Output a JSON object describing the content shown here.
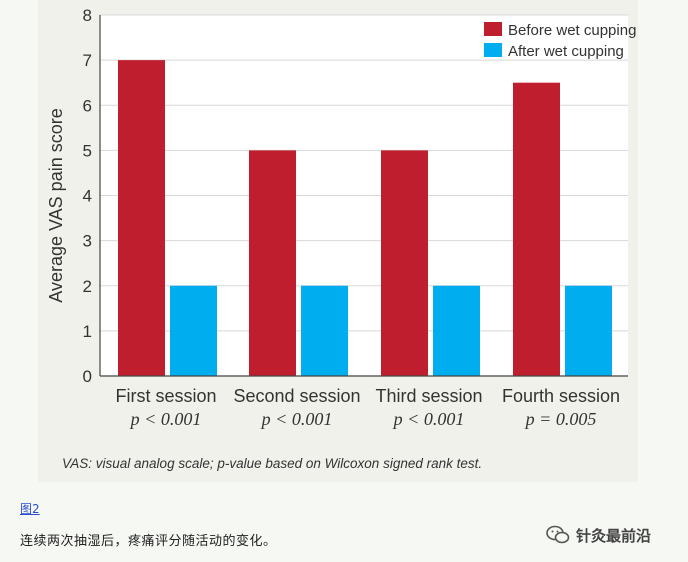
{
  "chart_data": {
    "type": "bar",
    "title": "",
    "ylabel": "Average VAS pain score",
    "xlabel": "",
    "ylim": [
      0,
      8
    ],
    "yticks": [
      "0",
      "1",
      "2",
      "3",
      "4",
      "5",
      "6",
      "7",
      "8"
    ],
    "grid": true,
    "legend_position": "top-right",
    "categories": [
      "First session",
      "Second session",
      "Third session",
      "Fourth session"
    ],
    "pvalues": [
      "p < 0.001",
      "p < 0.001",
      "p < 0.001",
      "p = 0.005"
    ],
    "series": [
      {
        "name": "Before wet cupping",
        "color": "#be1e2d",
        "values": [
          7,
          5,
          5,
          6.5
        ]
      },
      {
        "name": "After wet cupping",
        "color": "#00adef",
        "values": [
          2,
          2,
          2,
          2
        ]
      }
    ],
    "footnote": "VAS: visual analog scale; p-value based on Wilcoxon signed rank test."
  },
  "figure_link": "图2",
  "caption": "连续两次抽湿后，疼痛评分随活动的变化。",
  "watermark": {
    "text": "针灸最前沿",
    "icon": "wechat-icon"
  }
}
